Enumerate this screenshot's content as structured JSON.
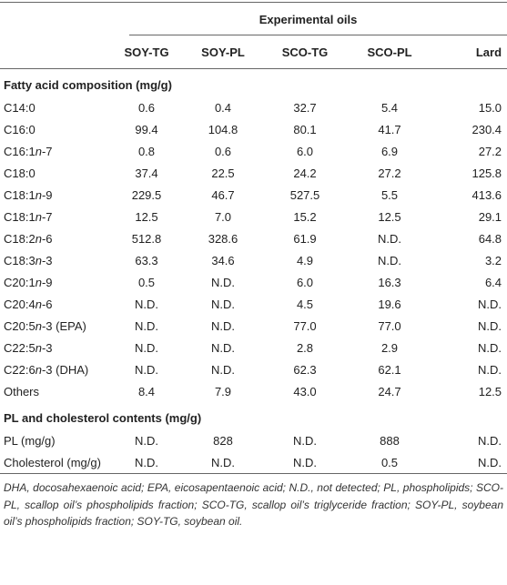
{
  "table": {
    "group_header": "Experimental oils",
    "columns": [
      "SOY-TG",
      "SOY-PL",
      "SCO-TG",
      "SCO-PL",
      "Lard"
    ],
    "sections": [
      {
        "title": "Fatty acid composition (mg/g)",
        "rows": [
          [
            "C14:0",
            "0.6",
            "0.4",
            "32.7",
            "5.4",
            "15.0"
          ],
          [
            "C16:0",
            "99.4",
            "104.8",
            "80.1",
            "41.7",
            "230.4"
          ],
          [
            "C16:1n-7",
            "0.8",
            "0.6",
            "6.0",
            "6.9",
            "27.2"
          ],
          [
            "C18:0",
            "37.4",
            "22.5",
            "24.2",
            "27.2",
            "125.8"
          ],
          [
            "C18:1n-9",
            "229.5",
            "46.7",
            "527.5",
            "5.5",
            "413.6"
          ],
          [
            "C18:1n-7",
            "12.5",
            "7.0",
            "15.2",
            "12.5",
            "29.1"
          ],
          [
            "C18:2n-6",
            "512.8",
            "328.6",
            "61.9",
            "N.D.",
            "64.8"
          ],
          [
            "C18:3n-3",
            "63.3",
            "34.6",
            "4.9",
            "N.D.",
            "3.2"
          ],
          [
            "C20:1n-9",
            "0.5",
            "N.D.",
            "6.0",
            "16.3",
            "6.4"
          ],
          [
            "C20:4n-6",
            "N.D.",
            "N.D.",
            "4.5",
            "19.6",
            "N.D."
          ],
          [
            "C20:5n-3 (EPA)",
            "N.D.",
            "N.D.",
            "77.0",
            "77.0",
            "N.D."
          ],
          [
            "C22:5n-3",
            "N.D.",
            "N.D.",
            "2.8",
            "2.9",
            "N.D."
          ],
          [
            "C22:6n-3 (DHA)",
            "N.D.",
            "N.D.",
            "62.3",
            "62.1",
            "N.D."
          ],
          [
            "Others",
            "8.4",
            "7.9",
            "43.0",
            "24.7",
            "12.5"
          ]
        ]
      },
      {
        "title": "PL and cholesterol contents (mg/g)",
        "rows": [
          [
            "PL (mg/g)",
            "N.D.",
            "828",
            "N.D.",
            "888",
            "N.D."
          ],
          [
            "Cholesterol (mg/g)",
            "N.D.",
            "N.D.",
            "N.D.",
            "0.5",
            "N.D."
          ]
        ]
      }
    ],
    "footnote": "DHA, docosahexaenoic acid; EPA, eicosapentaenoic acid; N.D., not detected; PL, phospholipids; SCO-PL, scallop oil’s phospholipids fraction; SCO-TG, scallop oil’s triglyceride fraction; SOY-PL, soybean oil’s phospholipids fraction; SOY-TG, soybean oil."
  }
}
